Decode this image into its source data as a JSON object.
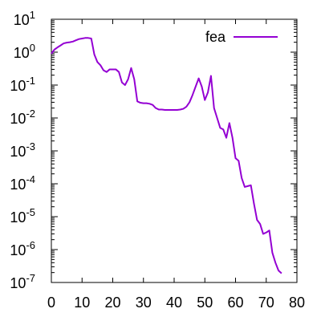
{
  "chart_data": {
    "type": "line",
    "title": "",
    "xlabel": "",
    "ylabel": "",
    "xlim": [
      0,
      80
    ],
    "ylim": [
      1e-07,
      10
    ],
    "yscale": "log",
    "grid": false,
    "legend_position": "top-right",
    "x_ticks": [
      "0",
      "10",
      "20",
      "30",
      "40",
      "50",
      "60",
      "70",
      "80"
    ],
    "y_ticks": [
      {
        "base": "10",
        "exp": "-7"
      },
      {
        "base": "10",
        "exp": "-6"
      },
      {
        "base": "10",
        "exp": "-5"
      },
      {
        "base": "10",
        "exp": "-4"
      },
      {
        "base": "10",
        "exp": "-3"
      },
      {
        "base": "10",
        "exp": "-2"
      },
      {
        "base": "10",
        "exp": "-1"
      },
      {
        "base": "10",
        "exp": "0"
      },
      {
        "base": "10",
        "exp": "1"
      }
    ],
    "series": [
      {
        "name": "fea",
        "color": "#9400d3",
        "x": [
          0,
          1,
          2,
          3,
          4,
          5,
          6,
          7,
          8,
          9,
          10,
          11,
          12,
          13,
          14,
          15,
          16,
          17,
          18,
          19,
          20,
          21,
          22,
          23,
          24,
          25,
          26,
          27,
          28,
          29,
          30,
          31,
          32,
          33,
          34,
          35,
          36,
          37,
          38,
          39,
          40,
          41,
          42,
          43,
          44,
          45,
          46,
          47,
          48,
          49,
          50,
          51,
          52,
          53,
          54,
          55,
          56,
          57,
          58,
          59,
          60,
          61,
          62,
          63,
          64,
          65,
          66,
          67,
          68,
          69,
          70,
          71,
          72,
          73,
          74,
          75
        ],
        "y": [
          0.9,
          1.2,
          1.4,
          1.6,
          1.85,
          1.95,
          2.0,
          2.1,
          2.3,
          2.5,
          2.6,
          2.7,
          2.7,
          2.6,
          0.85,
          0.5,
          0.4,
          0.28,
          0.25,
          0.3,
          0.3,
          0.3,
          0.25,
          0.12,
          0.1,
          0.15,
          0.33,
          0.15,
          0.032,
          0.029,
          0.028,
          0.028,
          0.027,
          0.025,
          0.02,
          0.018,
          0.018,
          0.0175,
          0.0175,
          0.0175,
          0.0175,
          0.0175,
          0.018,
          0.019,
          0.022,
          0.03,
          0.05,
          0.09,
          0.16,
          0.09,
          0.035,
          0.06,
          0.19,
          0.02,
          0.01,
          0.005,
          0.0045,
          0.0025,
          0.007,
          0.0025,
          0.0006,
          0.0005,
          0.00015,
          8e-05,
          8.5e-05,
          9e-05,
          2.5e-05,
          8e-06,
          6e-06,
          3e-06,
          3.3e-06,
          3.8e-06,
          8e-07,
          4e-07,
          2.3e-07,
          1.9e-07
        ]
      }
    ]
  }
}
